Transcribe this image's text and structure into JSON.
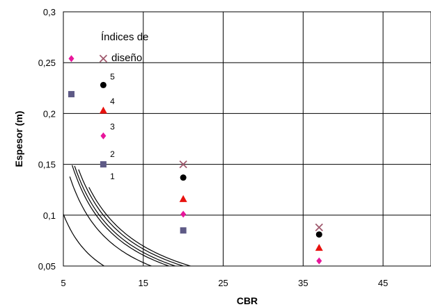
{
  "chart_data": {
    "type": "line",
    "xlabel": "CBR",
    "ylabel": "Espesor (m)",
    "xlim": [
      5,
      51
    ],
    "ylim": [
      0.05,
      0.3
    ],
    "xticks": [
      "5",
      "15",
      "25",
      "35",
      "45"
    ],
    "xtick_values": [
      5,
      15,
      25,
      35,
      45
    ],
    "yticks": [
      "0,05",
      "0,1",
      "0,15",
      "0,2",
      "0,25",
      "0,3"
    ],
    "ytick_values": [
      0.05,
      0.1,
      0.15,
      0.2,
      0.25,
      0.3
    ],
    "grid": true,
    "annotation": {
      "line1": "Índices de",
      "line2": "diseño"
    },
    "curves": [
      {
        "label": "1",
        "k": 0.505,
        "x_from": 5.0,
        "x_to": 50.0
      },
      {
        "label": "2",
        "k": 0.8,
        "x_from": 5.8,
        "x_to": 43.0
      },
      {
        "label": "3",
        "k": 0.91,
        "x_from": 6.1,
        "x_to": 49.5
      },
      {
        "label": "4",
        "k": 0.95,
        "x_from": 6.4,
        "x_to": 51.0
      },
      {
        "label": "5",
        "k": 1.0,
        "x_from": 6.9,
        "x_to": 51.0
      },
      {
        "label": "",
        "k": 1.045,
        "x_from": 8.2,
        "x_to": 51.0
      }
    ],
    "series": [
      {
        "name": "",
        "marker": "square",
        "color": "#5e5a86",
        "points": [
          [
            6,
            0.219
          ],
          [
            10,
            0.15
          ],
          [
            20,
            0.085
          ]
        ]
      },
      {
        "name": "",
        "marker": "diamond",
        "color": "#e8169b",
        "points": [
          [
            6,
            0.254
          ],
          [
            10,
            0.178
          ],
          [
            20,
            0.101
          ],
          [
            37,
            0.055
          ]
        ]
      },
      {
        "name": "",
        "marker": "triangle",
        "color": "#e8120e",
        "points": [
          [
            10,
            0.203
          ],
          [
            20,
            0.116
          ],
          [
            37,
            0.068
          ]
        ]
      },
      {
        "name": "",
        "marker": "circle",
        "color": "#000000",
        "points": [
          [
            10,
            0.228
          ],
          [
            20,
            0.137
          ],
          [
            37,
            0.081
          ]
        ]
      },
      {
        "name": "",
        "marker": "x",
        "color": "#a05a6e",
        "points": [
          [
            10,
            0.254
          ],
          [
            20,
            0.15
          ],
          [
            37,
            0.088
          ]
        ]
      }
    ]
  }
}
